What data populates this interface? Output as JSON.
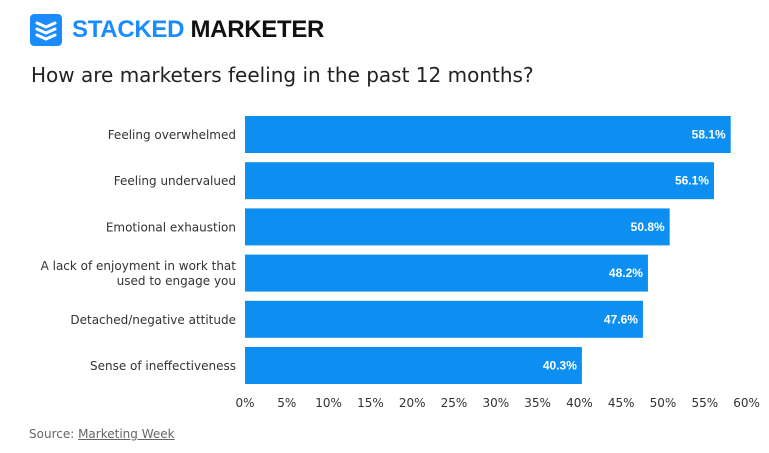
{
  "brand": {
    "part1": "STACKED",
    "part2": " MARKETER",
    "accent_color": "#1a8cff",
    "logo_icon": "stacked-layers-icon"
  },
  "chart_data": {
    "type": "bar",
    "orientation": "horizontal",
    "title": "How are marketers feeling in the past 12 months?",
    "categories": [
      [
        "Feeling overwhelmed"
      ],
      [
        "Feeling undervalued"
      ],
      [
        "Emotional exhaustion"
      ],
      [
        "A lack of enjoyment in work that",
        "used to engage you"
      ],
      [
        "Detached/negative attitude"
      ],
      [
        "Sense of ineffectiveness"
      ]
    ],
    "values": [
      58.1,
      56.1,
      50.8,
      48.2,
      47.6,
      40.3
    ],
    "value_labels": [
      "58.1%",
      "56.1%",
      "50.8%",
      "48.2%",
      "47.6%",
      "40.3%"
    ],
    "x_ticks": [
      "0%",
      "5%",
      "10%",
      "15%",
      "20%",
      "25%",
      "30%",
      "35%",
      "40%",
      "45%",
      "50%",
      "55%",
      "60%"
    ],
    "xlim": [
      0,
      60
    ],
    "grid": false,
    "bar_color": "#0d8ff2"
  },
  "source": {
    "prefix": "Source: ",
    "link_text": "Marketing Week"
  }
}
